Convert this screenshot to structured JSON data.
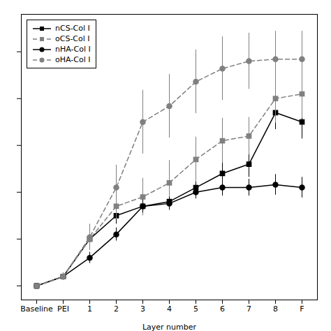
{
  "chart_data": {
    "type": "line",
    "categories": [
      "Baseline",
      "PEI",
      "1",
      "2",
      "3",
      "4",
      "5",
      "6",
      "7",
      "8",
      "F"
    ],
    "series": [
      {
        "name": "nCS-Col I",
        "color": "#000000",
        "marker": "square",
        "line_style": "solid",
        "values": [
          0,
          10,
          50,
          75,
          85,
          90,
          105,
          120,
          130,
          185,
          175
        ],
        "errors": [
          0,
          4,
          8,
          9,
          9,
          9,
          9,
          14,
          14,
          18,
          18
        ]
      },
      {
        "name": "oCS-Col I",
        "color": "#808080",
        "marker": "square",
        "line_style": "dashed",
        "values": [
          0,
          10,
          50,
          85,
          95,
          110,
          135,
          155,
          160,
          200,
          205
        ],
        "errors": [
          0,
          4,
          8,
          14,
          20,
          24,
          24,
          24,
          20,
          26,
          26
        ]
      },
      {
        "name": "nHA-Col I",
        "color": "#000000",
        "marker": "circle",
        "line_style": "solid",
        "values": [
          0,
          10,
          30,
          55,
          85,
          88,
          100,
          105,
          105,
          108,
          105
        ],
        "errors": [
          0,
          4,
          6,
          7,
          7,
          7,
          7,
          9,
          9,
          11,
          11
        ]
      },
      {
        "name": "oHA-Col I",
        "color": "#808080",
        "marker": "circle",
        "line_style": "dashed",
        "values": [
          0,
          10,
          52,
          105,
          175,
          192,
          218,
          232,
          240,
          242,
          242
        ],
        "errors": [
          0,
          4,
          14,
          24,
          34,
          34,
          34,
          34,
          30,
          30,
          30
        ]
      }
    ],
    "xlabel": "Layer number",
    "ylim": [
      -15,
      290
    ],
    "yticks": [
      0,
      50,
      100,
      150,
      200,
      250
    ],
    "tick_labels": "x",
    "grid": false,
    "legend": "upper left"
  }
}
